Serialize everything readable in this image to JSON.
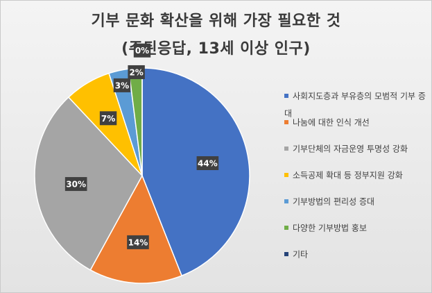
{
  "chart_data": {
    "type": "pie",
    "title": "기부 문화 확산을 위해 가장 필요한 것",
    "subtitle": "(주된응답, 13세 이상 인구)",
    "categories": [
      "사회지도층과 부유층의 모범적 기부 증대",
      "나눔에 대한 인식 개선",
      "기부단체의 자금운영 투명성 강화",
      "소득공제 확대 등 정부지원 강화",
      "기부방법의 편리성 증대",
      "다양한 기부방법 홍보",
      "기타"
    ],
    "values": [
      44,
      14,
      30,
      7,
      3,
      2,
      0
    ],
    "data_labels": [
      "44%",
      "14%",
      "30%",
      "7%",
      "3%",
      "2%",
      "0%"
    ],
    "colors": [
      "#4472C4",
      "#ED7D31",
      "#A5A5A5",
      "#FFC000",
      "#5B9BD5",
      "#70AD47",
      "#264478"
    ],
    "legend": "right"
  }
}
